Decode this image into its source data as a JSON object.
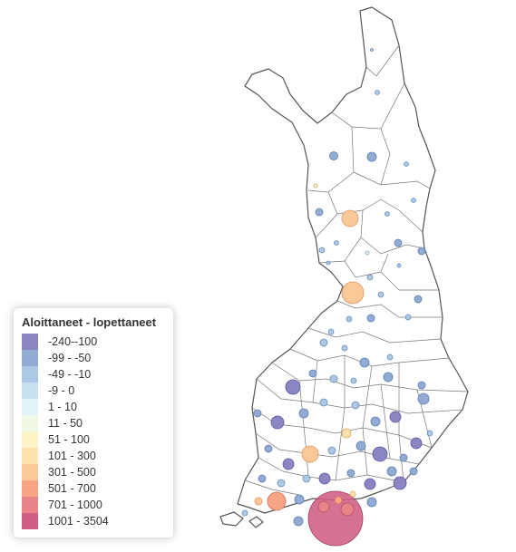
{
  "legend": {
    "title": "Aloittaneet - lopettaneet",
    "items": [
      {
        "label": "-240--100",
        "color": "#8a86c3"
      },
      {
        "label": "-99 - -50",
        "color": "#92abd3"
      },
      {
        "label": "-49 - -10",
        "color": "#abc9e4"
      },
      {
        "label": "-9 - 0",
        "color": "#c9e1ef"
      },
      {
        "label": "1 - 10",
        "color": "#e3f2f6"
      },
      {
        "label": "11 - 50",
        "color": "#eef8e2"
      },
      {
        "label": "51 - 100",
        "color": "#fdf3c6"
      },
      {
        "label": "101 - 300",
        "color": "#fde2ae"
      },
      {
        "label": "301 - 500",
        "color": "#fdc897"
      },
      {
        "label": "501 - 700",
        "color": "#f7a585"
      },
      {
        "label": "701 - 1000",
        "color": "#e9838a"
      },
      {
        "label": "1001 - 3504",
        "color": "#cf5f84"
      }
    ]
  }
}
